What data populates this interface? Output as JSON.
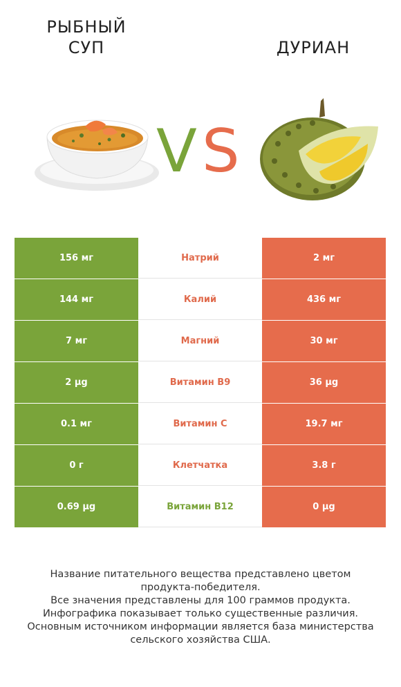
{
  "left_title": "РЫБНЫЙ\nСУП",
  "right_title": "ДУРИАН",
  "vs_text": "VS",
  "colors": {
    "left": "#7aa43a",
    "right": "#e66c4c"
  },
  "rows": [
    {
      "left": "156 мг",
      "nutrient": "Натрий",
      "right": "2 мг",
      "winner": "right"
    },
    {
      "left": "144 мг",
      "nutrient": "Калий",
      "right": "436 мг",
      "winner": "right"
    },
    {
      "left": "7 мг",
      "nutrient": "Магний",
      "right": "30 мг",
      "winner": "right"
    },
    {
      "left": "2 µg",
      "nutrient": "Витамин B9",
      "right": "36 µg",
      "winner": "right"
    },
    {
      "left": "0.1 мг",
      "nutrient": "Витамин C",
      "right": "19.7 мг",
      "winner": "right"
    },
    {
      "left": "0 г",
      "nutrient": "Клетчатка",
      "right": "3.8 г",
      "winner": "right"
    },
    {
      "left": "0.69 µg",
      "nutrient": "Витамин B12",
      "right": "0 µg",
      "winner": "left"
    }
  ],
  "footer": [
    "Название питательного вещества представлено цветом",
    "продукта-победителя.",
    "Все значения представлены для 100 граммов продукта.",
    "Инфографика показывает только существенные различия.",
    "Основным источником информации является база министерства",
    "сельского хозяйства США."
  ]
}
